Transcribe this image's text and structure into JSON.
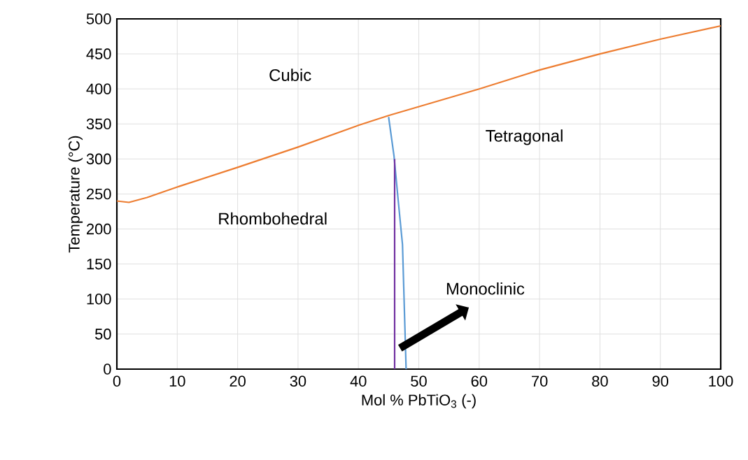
{
  "chart_data": {
    "type": "line",
    "xlabel": "Mol % PbTiO$_{3}$ (-)",
    "ylabel": "Temperature (°C)",
    "xlim": [
      0,
      100
    ],
    "ylim": [
      0,
      500
    ],
    "xticks": [
      0,
      10,
      20,
      30,
      40,
      50,
      60,
      70,
      80,
      90,
      100
    ],
    "yticks": [
      0,
      50,
      100,
      150,
      200,
      250,
      300,
      350,
      400,
      450,
      500
    ],
    "grid": true,
    "marker": "none",
    "line_style": "solid",
    "series": [
      {
        "color": "#ed7d31",
        "x": [
          0,
          2,
          5,
          10,
          20,
          30,
          40,
          45,
          60,
          70,
          80,
          90,
          100
        ],
        "values": [
          240,
          238,
          245,
          260,
          288,
          317,
          348,
          362,
          400,
          427,
          450,
          471,
          490
        ]
      },
      {
        "color": "#5b9bd5",
        "x": [
          45,
          45.9,
          46.6,
          47.3,
          47.9
        ],
        "values": [
          360,
          304,
          240,
          178,
          0
        ]
      },
      {
        "color": "#7030a0",
        "x": [
          46,
          46
        ],
        "values": [
          0,
          300
        ]
      }
    ],
    "annotations": [
      "Cubic",
      "Rhombohedral",
      "Tetragonal",
      "Monoclinic"
    ]
  }
}
